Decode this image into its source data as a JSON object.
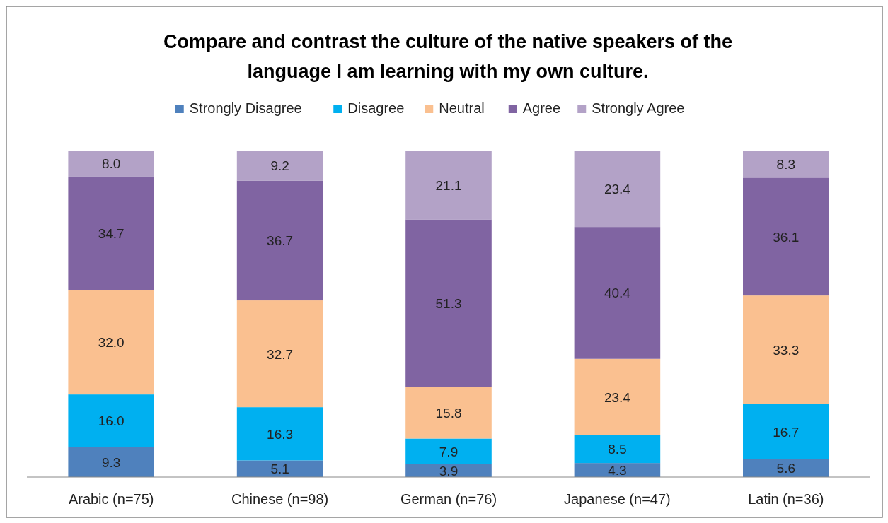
{
  "chart_data": {
    "type": "bar",
    "stacked": true,
    "title": "Compare and contrast the culture of the native speakers of the language I am learning with my own culture.",
    "categories": [
      "Arabic (n=75)",
      "Chinese (n=98)",
      "German (n=76)",
      "Japanese (n=47)",
      "Latin (n=36)"
    ],
    "legend": "top",
    "series": [
      {
        "name": "Strongly Disagree",
        "color": "#4f81bd",
        "values": [
          9.3,
          5.1,
          3.9,
          4.3,
          5.6
        ],
        "value_labels": [
          "9.3",
          "5.1",
          "3.9",
          "4.3",
          "5.6"
        ]
      },
      {
        "name": "Disagree",
        "color": "#00b0f0",
        "values": [
          16.0,
          16.3,
          7.9,
          8.5,
          16.7
        ],
        "value_labels": [
          "16.0",
          "16.3",
          "7.9",
          "8.5",
          "16.7"
        ]
      },
      {
        "name": "Neutral",
        "color": "#fac090",
        "values": [
          32.0,
          32.7,
          15.8,
          23.4,
          33.3
        ],
        "value_labels": [
          "32.0",
          "32.7",
          "15.8",
          "23.4",
          "33.3"
        ]
      },
      {
        "name": "Agree",
        "color": "#8064a2",
        "values": [
          34.7,
          36.7,
          51.3,
          40.4,
          36.1
        ],
        "value_labels": [
          "34.7",
          "36.7",
          "51.3",
          "40.4",
          "36.1"
        ]
      },
      {
        "name": "Strongly Agree",
        "color": "#b3a2c7",
        "values": [
          8.0,
          9.2,
          21.1,
          23.4,
          8.3
        ],
        "value_labels": [
          "8.0",
          "9.2",
          "21.1",
          "23.4",
          "8.3"
        ]
      }
    ]
  }
}
